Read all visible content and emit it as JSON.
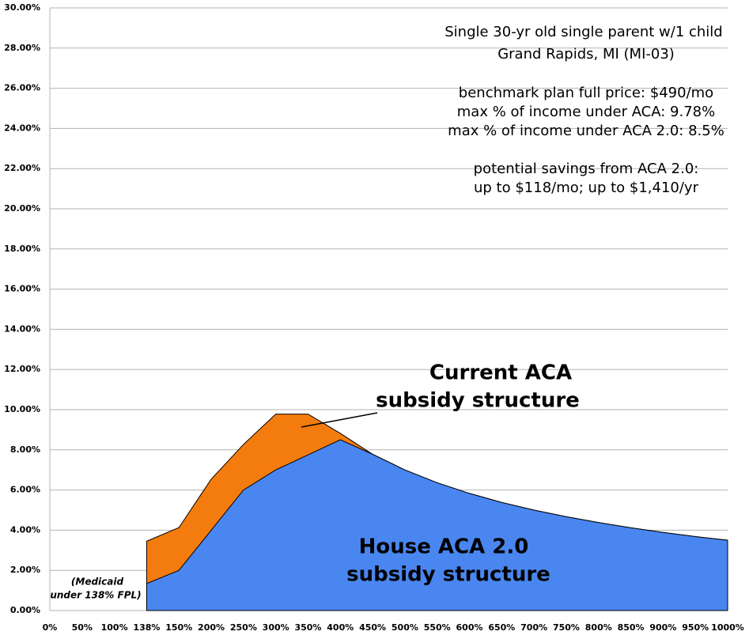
{
  "chart_data": {
    "type": "area",
    "notes": [
      "Single 30-yr old single parent w/1 child",
      "Grand Rapids, MI (MI-03)",
      "benchmark plan full price: $490/mo",
      "max % of income under ACA: 9.78%",
      "max % of income under ACA 2.0: 8.5%",
      "potential savings from ACA 2.0:",
      "up to $118/mo; up to $1,410/yr"
    ],
    "annotations": [
      "Current ACA",
      "subsidy structure",
      "House ACA 2.0",
      "subsidy structure",
      "(Medicaid",
      "under 138% FPL)"
    ],
    "categories": [
      "0%",
      "50%",
      "100%",
      "138%",
      "150%",
      "200%",
      "250%",
      "300%",
      "350%",
      "400%",
      "450%",
      "500%",
      "550%",
      "600%",
      "650%",
      "700%",
      "750%",
      "800%",
      "850%",
      "900%",
      "950%",
      "1000%"
    ],
    "series": [
      {
        "color": "#f47c0e",
        "values": [
          null,
          null,
          null,
          3.45,
          4.13,
          6.54,
          8.27,
          9.78,
          9.78,
          8.82,
          7.78,
          7.0,
          6.36,
          5.83,
          5.38,
          5.0,
          4.67,
          4.38,
          4.12,
          3.89,
          3.68,
          3.5
        ]
      },
      {
        "color": "#4a86f0",
        "values": [
          null,
          null,
          null,
          1.34,
          2.0,
          4.0,
          6.0,
          7.0,
          7.75,
          8.5,
          7.78,
          7.0,
          6.36,
          5.83,
          5.38,
          5.0,
          4.67,
          4.38,
          4.12,
          3.89,
          3.68,
          3.5
        ]
      }
    ],
    "ylim": [
      0,
      30
    ],
    "yticks": [
      {
        "value": 0,
        "label": "0.00%"
      },
      {
        "value": 2,
        "label": "2.00%"
      },
      {
        "value": 4,
        "label": "4.00%"
      },
      {
        "value": 6,
        "label": "6.00%"
      },
      {
        "value": 8,
        "label": "8.00%"
      },
      {
        "value": 10,
        "label": "10.00%"
      },
      {
        "value": 12,
        "label": "12.00%"
      },
      {
        "value": 14,
        "label": "14.00%"
      },
      {
        "value": 16,
        "label": "16.00%"
      },
      {
        "value": 18,
        "label": "18.00%"
      },
      {
        "value": 20,
        "label": "20.00%"
      },
      {
        "value": 22,
        "label": "22.00%"
      },
      {
        "value": 24,
        "label": "24.00%"
      },
      {
        "value": 26,
        "label": "26.00%"
      },
      {
        "value": 28,
        "label": "28.00%"
      },
      {
        "value": 30,
        "label": "30.00%"
      }
    ],
    "grid": true
  }
}
